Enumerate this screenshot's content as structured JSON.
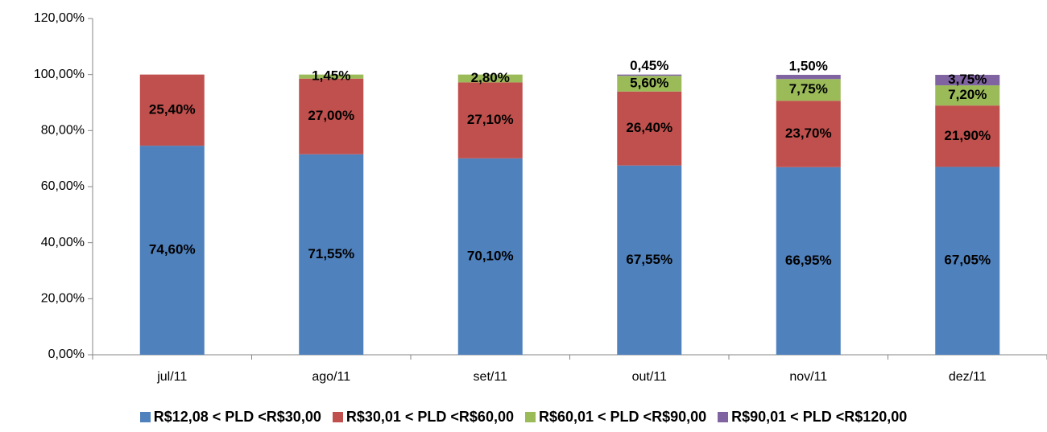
{
  "chart_data": {
    "type": "stacked_bar",
    "categories": [
      "jul/11",
      "ago/11",
      "set/11",
      "out/11",
      "nov/11",
      "dez/11"
    ],
    "series": [
      {
        "name": "R$12,08 < PLD <R$30,00",
        "color": "#4f81bd",
        "values": [
          74.6,
          71.55,
          70.1,
          67.55,
          66.95,
          67.05
        ],
        "value_labels": [
          "74,60%",
          "71,55%",
          "70,10%",
          "67,55%",
          "66,95%",
          "67,05%"
        ]
      },
      {
        "name": "R$30,01 < PLD <R$60,00",
        "color": "#c0504d",
        "values": [
          25.4,
          27.0,
          27.1,
          26.4,
          23.7,
          21.9
        ],
        "value_labels": [
          "25,40%",
          "27,00%",
          "27,10%",
          "26,40%",
          "23,70%",
          "21,90%"
        ]
      },
      {
        "name": "R$60,01 < PLD <R$90,00",
        "color": "#9bbb59",
        "values": [
          null,
          1.45,
          2.8,
          5.6,
          7.75,
          7.2
        ],
        "value_labels": [
          null,
          "1,45%",
          "2,80%",
          "5,60%",
          "7,75%",
          "7,20%"
        ]
      },
      {
        "name": "R$90,01 < PLD <R$120,00",
        "color": "#8064a2",
        "values": [
          null,
          null,
          null,
          0.45,
          1.5,
          3.75
        ],
        "value_labels": [
          null,
          null,
          null,
          "0,45%",
          "1,50%",
          "3,75%"
        ]
      }
    ],
    "ylim": [
      0,
      120
    ],
    "yticks": [
      {
        "value": 0,
        "label": "0,00%"
      },
      {
        "value": 20,
        "label": "20,00%"
      },
      {
        "value": 40,
        "label": "40,00%"
      },
      {
        "value": 60,
        "label": "60,00%"
      },
      {
        "value": 80,
        "label": "80,00%"
      },
      {
        "value": 100,
        "label": "100,00%"
      },
      {
        "value": 120,
        "label": "120,00%"
      }
    ],
    "legend": "bottom",
    "grid": false
  }
}
